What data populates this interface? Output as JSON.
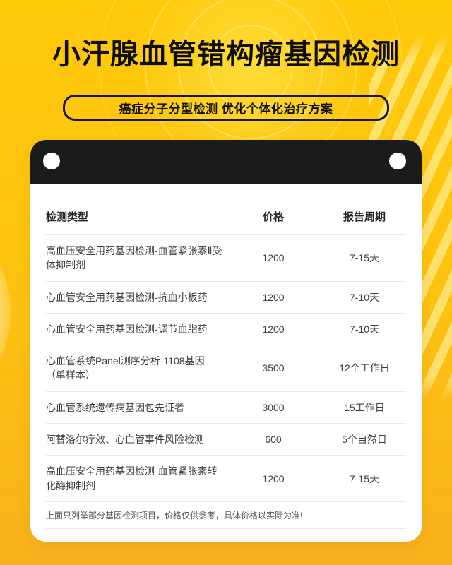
{
  "header": {
    "title": "小汗腺血管错构瘤基因检测",
    "subtitle": "癌症分子分型检测 优化个体化治疗方案"
  },
  "table": {
    "columns": {
      "type": "检测类型",
      "price": "价格",
      "period": "报告周期"
    },
    "rows": [
      {
        "type": "高血压安全用药基因检测-血管紧张素Ⅱ受体抑制剂",
        "price": "1200",
        "period": "7-15天"
      },
      {
        "type": "心血管安全用药基因检测-抗血小板药",
        "price": "1200",
        "period": "7-10天"
      },
      {
        "type": "心血管安全用药基因检测-调节血脂药",
        "price": "1200",
        "period": "7-10天"
      },
      {
        "type": "心血管系统Panel测序分析-1108基因（单样本）",
        "price": "3500",
        "period": "12个工作日"
      },
      {
        "type": "心血管系统遗传病基因包先证者",
        "price": "3000",
        "period": "15工作日"
      },
      {
        "type": "阿替洛尔疗效、心血管事件风险检测",
        "price": "600",
        "period": "5个自然日"
      },
      {
        "type": "高血压安全用药基因检测-血管紧张素转化酶抑制剂",
        "price": "1200",
        "period": "7-15天"
      }
    ],
    "note": "上面只列举部分基因检测项目，价格仅供参考，具体价格以实际为准!"
  },
  "colors": {
    "background_top": "#ffc90a",
    "background_bottom": "#f9b21d",
    "card": "#ffffff",
    "card_bar": "#1b1b1b",
    "accent_text": "#0d0d0d",
    "divider": "#e9e9e9"
  }
}
